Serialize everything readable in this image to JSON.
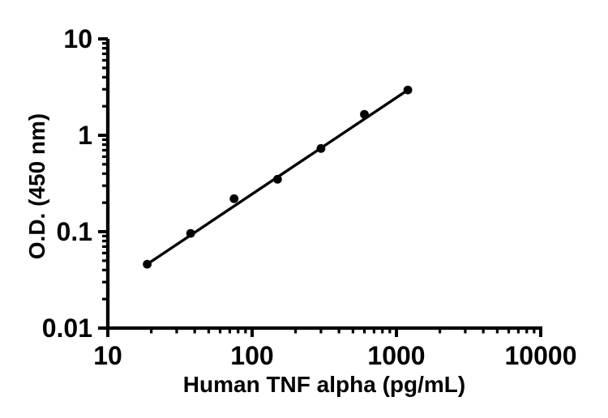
{
  "figure": {
    "background_color": "#ffffff",
    "foreground_color": "#000000"
  },
  "chart_data": {
    "type": "scatter",
    "title": "",
    "xlabel": "Human TNF alpha (pg/mL)",
    "ylabel": "O.D. (450 nm)",
    "x_scale": "log10",
    "y_scale": "log10",
    "xlim": [
      10,
      10000
    ],
    "ylim": [
      0.01,
      10
    ],
    "x_ticks": {
      "values": [
        10,
        100,
        1000,
        10000
      ],
      "labels": [
        "10",
        "100",
        "1000",
        "10000"
      ]
    },
    "y_ticks": {
      "values": [
        0.01,
        0.1,
        1,
        10
      ],
      "labels": [
        "0.01",
        "0.1",
        "1",
        "10"
      ]
    },
    "minor_ticks": "log-decade-multiples-2-to-9",
    "grid": false,
    "legend": "none",
    "marker": {
      "shape": "filled-circle",
      "color": "#000000"
    },
    "trend_line": {
      "present": true,
      "color": "#000000",
      "fit": "straight-line-log-log-through-end-points"
    },
    "points": {
      "x": [
        18.75,
        37.5,
        75,
        150,
        300,
        600,
        1200
      ],
      "y": [
        0.046,
        0.096,
        0.22,
        0.35,
        0.73,
        1.65,
        2.95
      ]
    }
  }
}
